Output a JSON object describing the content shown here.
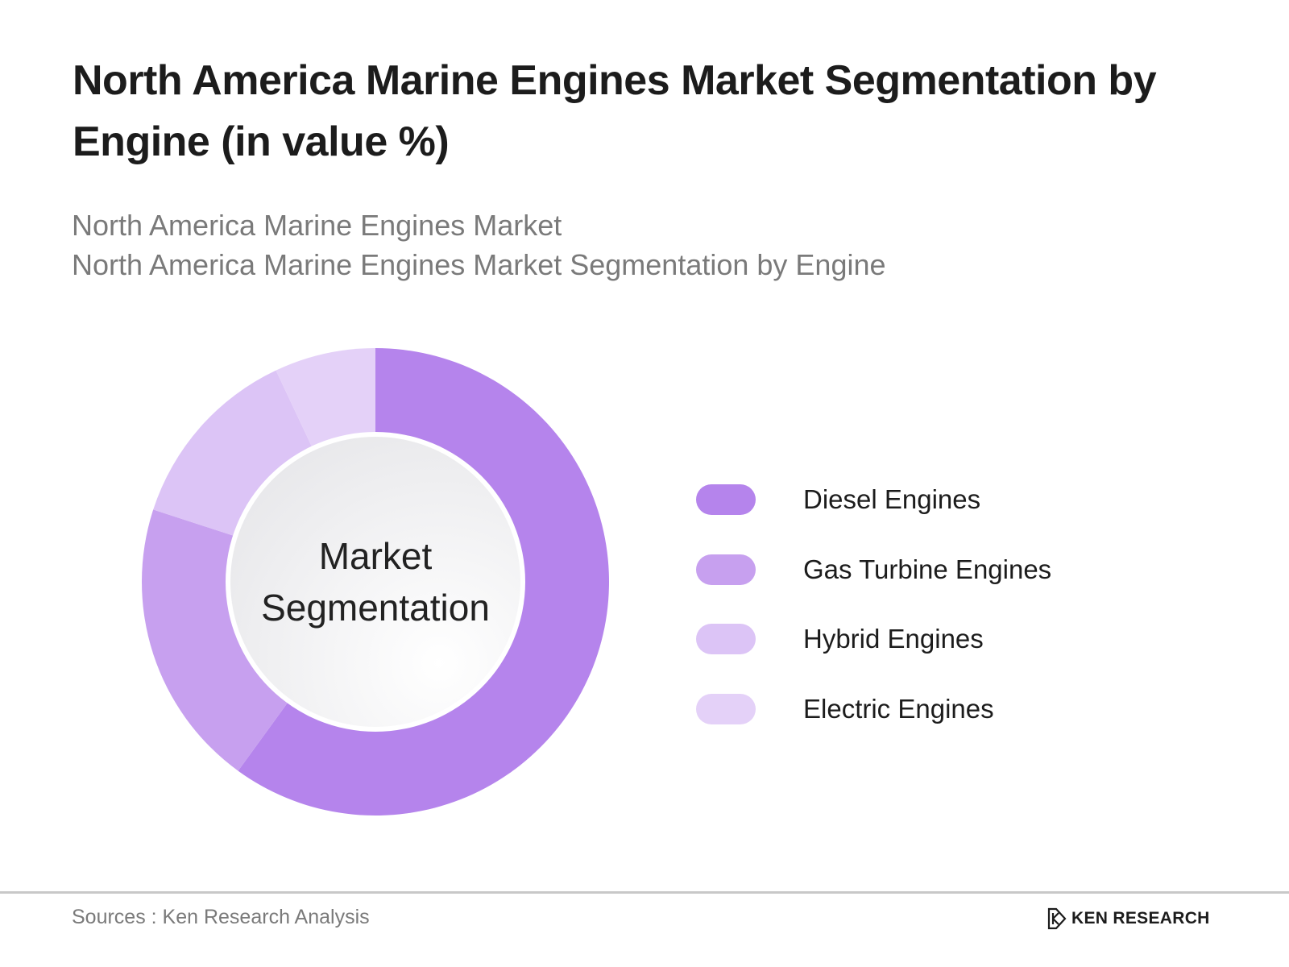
{
  "header": {
    "title": "North America Marine Engines Market Segmentation by Engine (in value %)",
    "subtitle_line1": "North America Marine Engines Market",
    "subtitle_line2": "North America Marine Engines Market Segmentation by Engine"
  },
  "chart_data": {
    "type": "pie",
    "variant": "donut",
    "title": "North America Marine Engines Market Segmentation by Engine (in value %)",
    "center_label_line1": "Market",
    "center_label_line2": "Segmentation",
    "legend_position": "right",
    "data_labels_shown": false,
    "slices": [
      {
        "label": "Diesel Engines",
        "value": 60,
        "color": "#b584ec"
      },
      {
        "label": "Gas Turbine Engines",
        "value": 20,
        "color": "#c7a0ef"
      },
      {
        "label": "Hybrid Engines",
        "value": 13,
        "color": "#dcc4f6"
      },
      {
        "label": "Electric Engines",
        "value": 7,
        "color": "#e4d1f8"
      }
    ]
  },
  "footer": {
    "source": "Sources : Ken Research Analysis",
    "brand": "KEN RESEARCH"
  },
  "icons": {
    "brand_logo": "ken-research-logo"
  }
}
